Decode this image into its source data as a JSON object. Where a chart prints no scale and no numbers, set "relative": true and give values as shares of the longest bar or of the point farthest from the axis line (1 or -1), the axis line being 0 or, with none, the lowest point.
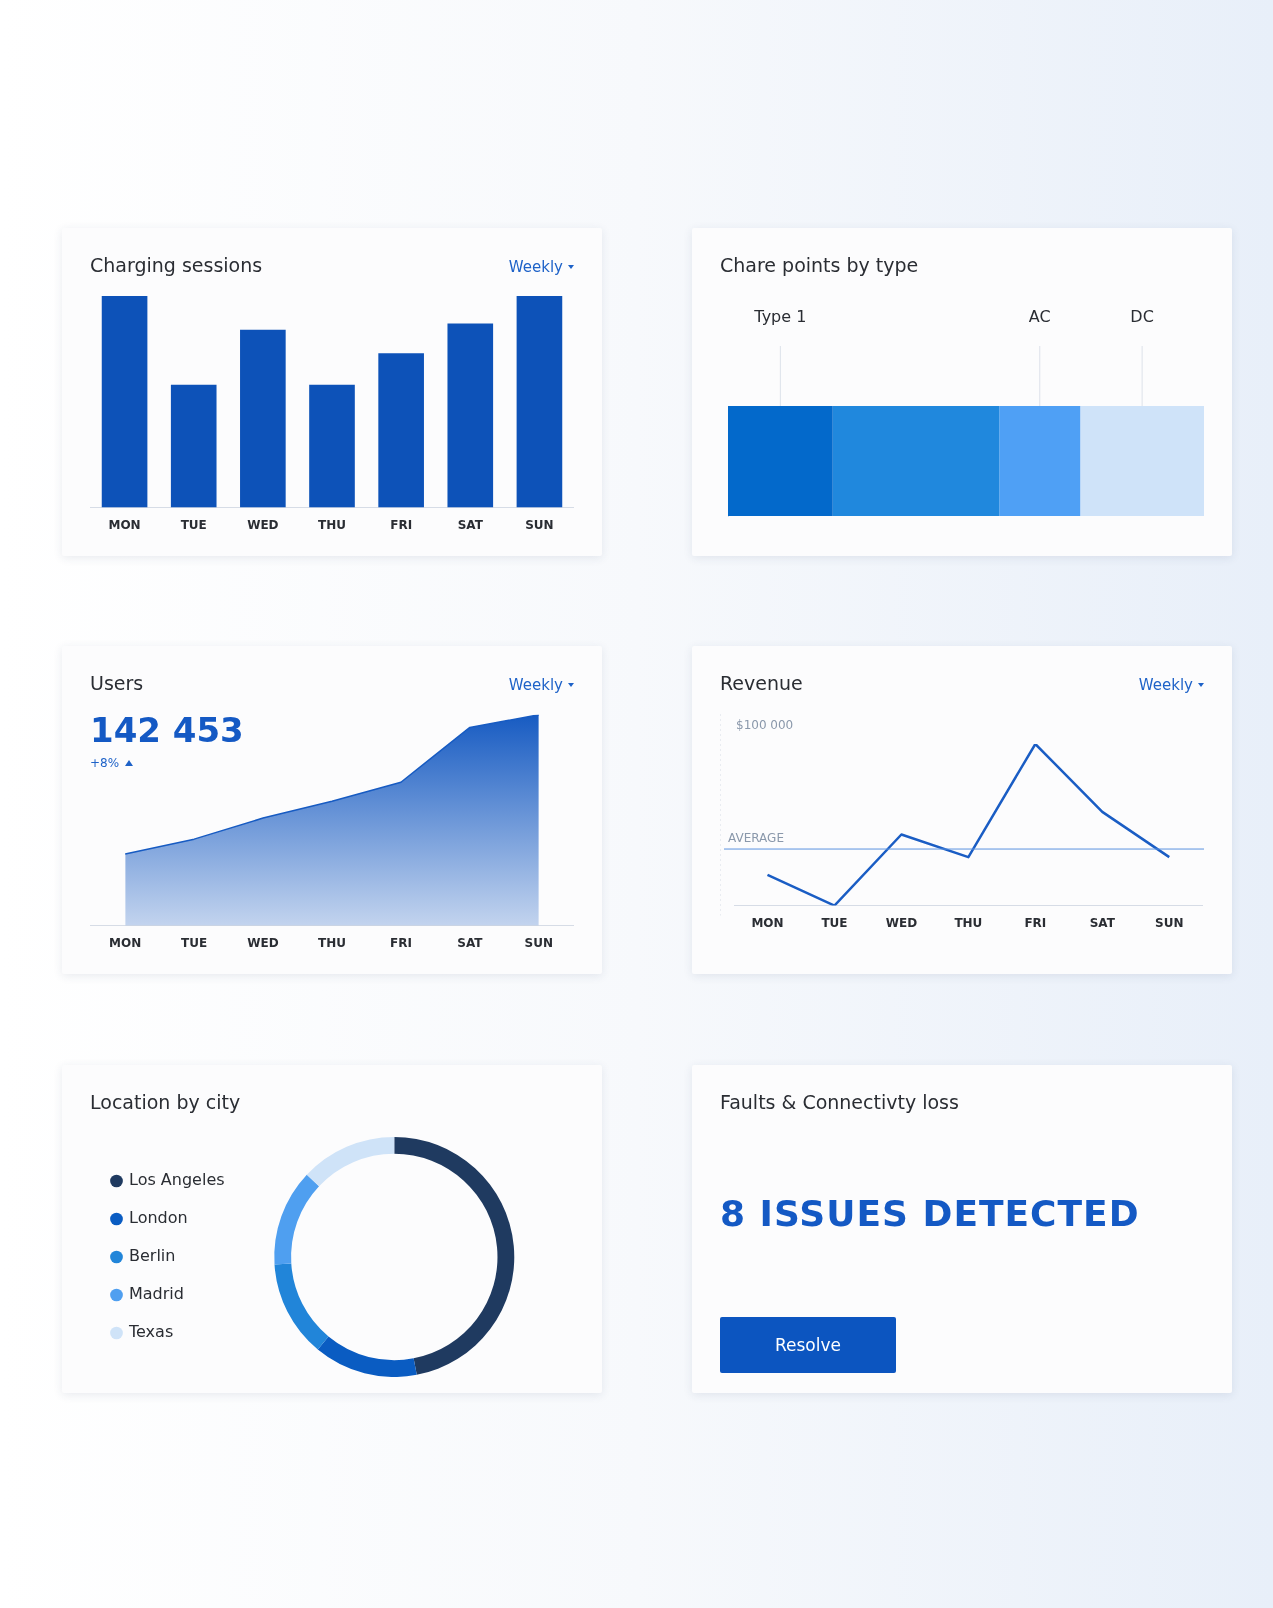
{
  "chart_data": [
    {
      "type": "bar",
      "title": "Charging sessions",
      "annotations": [
        "Weekly"
      ],
      "categories": [
        "MON",
        "TUE",
        "WED",
        "THU",
        "FRI",
        "SAT",
        "SUN"
      ],
      "values": [
        1,
        0.58,
        0.84,
        0.58,
        0.73,
        0.87,
        1
      ],
      "color": "#0d52b8",
      "relative": true
    },
    {
      "type": "bar",
      "title": "Chare points by type",
      "orientation": "horizontal",
      "stacked": true,
      "relative": true,
      "tick_labels": false,
      "categories": [
        null
      ],
      "series": [
        {
          "name": "Type 1",
          "color": "#0369cb",
          "values": [
            0.22
          ]
        },
        {
          "color": "#2088dd",
          "values": [
            0.35
          ]
        },
        {
          "name": "AC",
          "color": "#4fa0f5",
          "values": [
            0.17
          ]
        },
        {
          "name": "DC",
          "color": "#cfe3f9",
          "values": [
            0.26
          ]
        }
      ]
    },
    {
      "type": "area",
      "title": "Users",
      "annotations": [
        "142 453",
        "+8%",
        "Weekly"
      ],
      "categories": [
        "MON",
        "TUE",
        "WED",
        "THU",
        "FRI",
        "SAT",
        "SUN"
      ],
      "values": [
        0.34,
        0.41,
        0.51,
        0.59,
        0.68,
        0.94,
        1
      ],
      "color": "#175bc2",
      "relative": true
    },
    {
      "type": "line",
      "title": "Revenue",
      "annotations": [
        "Weekly",
        "$100 000"
      ],
      "categories": [
        "MON",
        "TUE",
        "WED",
        "THU",
        "FRI",
        "SAT",
        "SUN"
      ],
      "values": [
        0.19,
        0,
        0.44,
        0.3,
        1,
        0.58,
        0.3
      ],
      "color": "#1a5dc4",
      "relative": true,
      "marker": "none",
      "line_style": "solid",
      "ref_lines": [
        {
          "axis": "y",
          "value": 0.35,
          "label": "AVERAGE",
          "color": "#5b93e0"
        }
      ]
    },
    {
      "type": "donut",
      "title": "Location by city",
      "categories": [
        "Los Angeles",
        "London",
        "Berlin",
        "Madrid",
        "Texas"
      ],
      "values": [
        47,
        14,
        13,
        13,
        13
      ],
      "colors": [
        "#1f3a60",
        "#0a5cc2",
        "#2185d9",
        "#4f9ff0",
        "#cfe3f8"
      ],
      "legend": "left"
    },
    {
      "type": "other",
      "title": "Faults & Connectivty loss",
      "annotations": [
        "8 ISSUES DETECTED",
        "Resolve"
      ]
    }
  ]
}
